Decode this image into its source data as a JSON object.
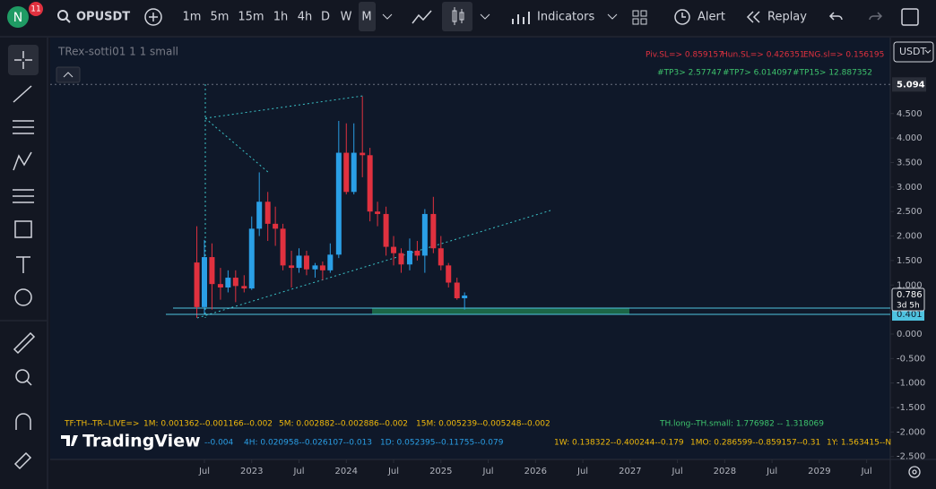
{
  "toolbar": {
    "avatar": "N",
    "badge": "11",
    "symbol": "OPUSDT",
    "intervals": [
      "1m",
      "5m",
      "15m",
      "1h",
      "4h",
      "D",
      "W",
      "M"
    ],
    "indicators": "Indicators",
    "alert": "Alert",
    "replay": "Replay"
  },
  "currency": "USDT",
  "chart_data": {
    "type": "candlestick",
    "indicator_title": "TRex-sotti01 1 1 small",
    "x": [
      2022.42,
      2022.5,
      2022.58,
      2022.67,
      2022.75,
      2022.83,
      2022.92,
      2023.0,
      2023.08,
      2023.17,
      2023.25,
      2023.33,
      2023.42,
      2023.5,
      2023.58,
      2023.67,
      2023.75,
      2023.83,
      2023.92,
      2024.0,
      2024.08,
      2024.17,
      2024.25,
      2024.33,
      2024.42,
      2024.5,
      2024.58,
      2024.67,
      2024.75,
      2024.83,
      2024.92,
      2025.0,
      2025.08,
      2025.17,
      2025.25
    ],
    "open": [
      1.46,
      0.55,
      1.57,
      1.02,
      0.95,
      1.15,
      0.98,
      0.93,
      2.15,
      2.7,
      2.25,
      2.15,
      1.4,
      1.35,
      1.6,
      1.32,
      1.4,
      1.3,
      1.62,
      3.7,
      2.9,
      3.7,
      3.65,
      2.5,
      2.45,
      1.78,
      1.65,
      1.42,
      1.7,
      1.6,
      2.45,
      1.75,
      1.4,
      1.05,
      0.73
    ],
    "high": [
      2.2,
      1.92,
      1.85,
      1.35,
      1.3,
      1.3,
      1.2,
      2.4,
      3.3,
      2.9,
      2.6,
      2.25,
      1.7,
      1.75,
      1.7,
      1.45,
      1.48,
      1.85,
      4.35,
      4.3,
      4.3,
      4.85,
      3.8,
      2.7,
      2.6,
      2.0,
      1.75,
      1.95,
      1.9,
      2.55,
      2.8,
      2.0,
      1.45,
      1.15,
      0.85
    ],
    "low": [
      0.33,
      0.4,
      0.5,
      0.7,
      0.85,
      0.65,
      0.85,
      0.9,
      2.0,
      1.9,
      1.8,
      1.3,
      0.95,
      1.25,
      1.2,
      1.15,
      1.1,
      1.25,
      1.55,
      2.85,
      2.85,
      3.2,
      2.3,
      2.2,
      1.6,
      1.4,
      1.25,
      1.3,
      1.5,
      1.25,
      1.65,
      1.3,
      0.95,
      0.7,
      0.5
    ],
    "close": [
      0.55,
      1.57,
      1.02,
      0.95,
      1.15,
      0.98,
      0.93,
      2.15,
      2.7,
      2.25,
      2.15,
      1.4,
      1.35,
      1.6,
      1.32,
      1.4,
      1.3,
      1.62,
      3.7,
      2.9,
      3.7,
      3.65,
      2.5,
      2.45,
      1.78,
      1.65,
      1.42,
      1.7,
      1.6,
      2.45,
      1.75,
      1.4,
      1.05,
      0.73,
      0.786
    ],
    "up_color": "#2a9fe6",
    "down_color": "#e0313f",
    "ylim": [
      -2.56,
      6.05
    ],
    "yticks": [
      {
        "value": 4.5,
        "label": "4.500"
      },
      {
        "value": 4,
        "label": "4.000"
      },
      {
        "value": 3.5,
        "label": "3.500"
      },
      {
        "value": 3,
        "label": "3.000"
      },
      {
        "value": 2.5,
        "label": "2.500"
      },
      {
        "value": 2,
        "label": "2.000"
      },
      {
        "value": 1.5,
        "label": "1.500"
      },
      {
        "value": 1,
        "label": "1.000"
      },
      {
        "value": 0,
        "label": "0.000"
      },
      {
        "value": -0.5,
        "label": "-0.500"
      },
      {
        "value": -1,
        "label": "-1.000"
      },
      {
        "value": -1.5,
        "label": "-1.500"
      },
      {
        "value": -2,
        "label": "-2.000"
      },
      {
        "value": -2.5,
        "label": "-2.500"
      }
    ],
    "xlim": [
      2020.87,
      2029.75
    ],
    "xticks": [
      {
        "value": 2022.5,
        "label": "Jul"
      },
      2023,
      {
        "value": 2023.5,
        "label": "Jul"
      },
      2024,
      {
        "value": 2024.5,
        "label": "Jul"
      },
      2025,
      {
        "value": 2025.5,
        "label": "Jul"
      },
      2026,
      {
        "value": 2026.5,
        "label": "Jul"
      },
      2027,
      {
        "value": 2027.5,
        "label": "Jul"
      },
      2028,
      {
        "value": 2028.5,
        "label": "Jul"
      },
      2029,
      {
        "value": 2029.5,
        "label": "Jul"
      }
    ],
    "crosshair_price": 5.094,
    "last_price": 0.786,
    "countdown": "3d 5h",
    "level_price": 0.401,
    "top_labels": [
      "Piv.SL=> 0.859157",
      "Hun.SL=> 0.426351",
      "ENG.sl=> 0.156195"
    ],
    "tp_labels": [
      "#TP3> 2.57747",
      "#TP7> 6.014097",
      "#TP15> 12.887352"
    ],
    "bottom_row1": [
      "TF:TH--TR--LIVE=>",
      "1M: 0.001362--0.001166--0.002",
      "5M: 0.002882--0.002886--0.002",
      "15M: 0.005239--0.005248--0.002",
      "TH.long--TH.small: 1.776982 -- 1.318069"
    ],
    "bottom_row2": [
      "--0.004",
      "4H: 0.020958--0.026107--0.013",
      "1D: 0.052395--0.11755--0.079",
      "1W: 0.138322--0.400244--0.179",
      "1MO: 0.286599--0.859157--0.31",
      "1Y: 1.563415--N"
    ],
    "watermark": "TradingView"
  }
}
